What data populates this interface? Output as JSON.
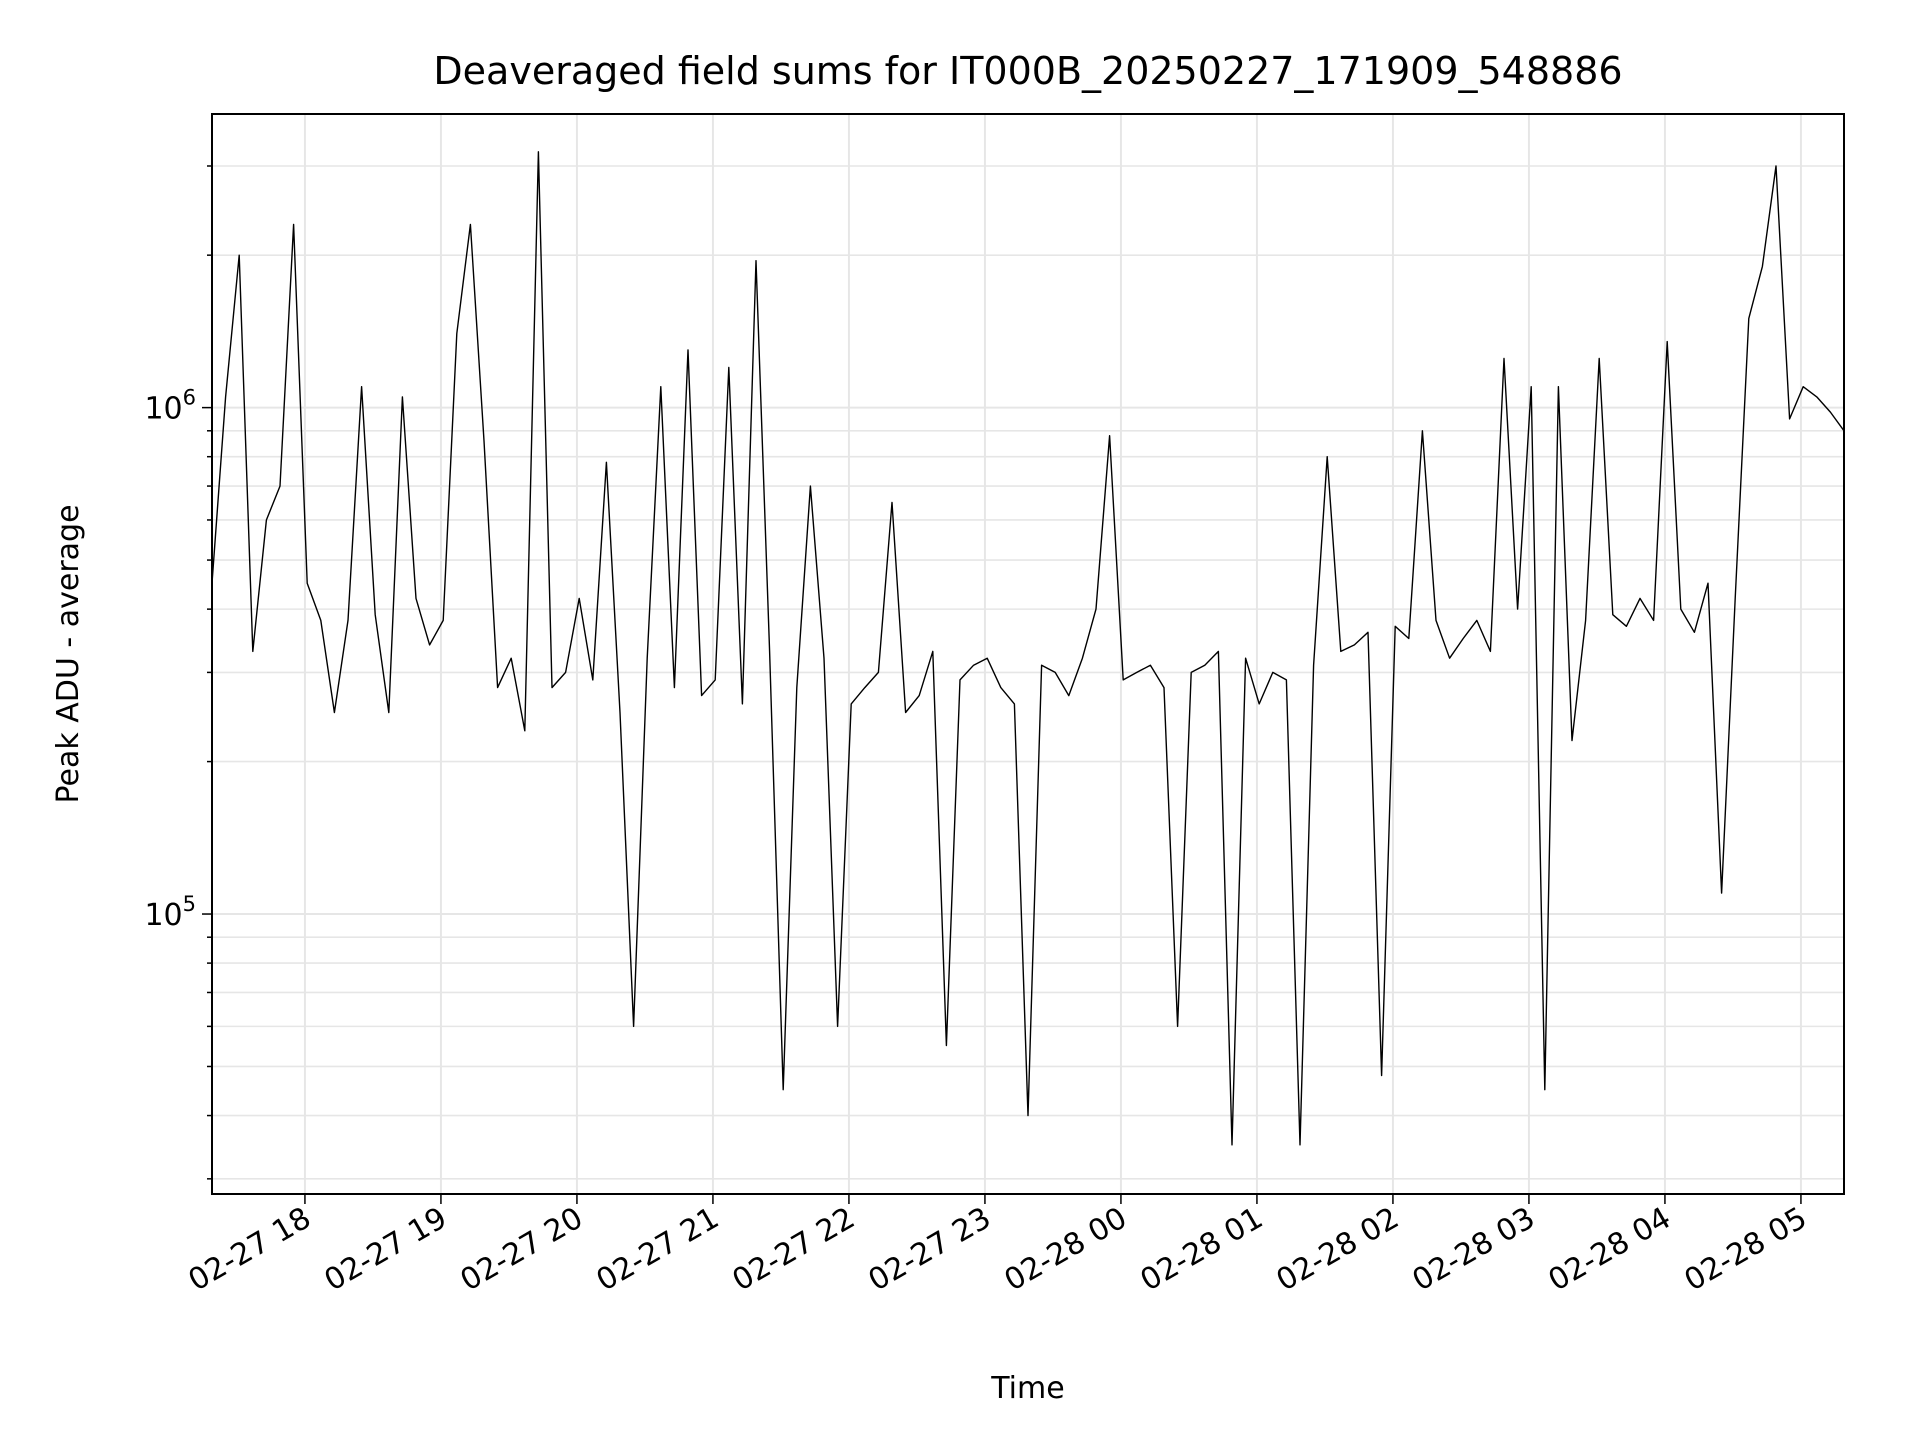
{
  "chart_data": {
    "type": "line",
    "title": "Deaveraged field sums for IT000B_20250227_171909_548886",
    "xlabel": "Time",
    "ylabel": "Peak ADU - average",
    "yscale": "log",
    "ylim": [
      28000,
      3800000
    ],
    "xlim": [
      "2025-02-27 17:19",
      "2025-02-28 05:19"
    ],
    "grid": true,
    "x_ticks": [
      {
        "value": "2025-02-27 18:00",
        "label": "02-27 18"
      },
      {
        "value": "2025-02-27 19:00",
        "label": "02-27 19"
      },
      {
        "value": "2025-02-27 20:00",
        "label": "02-27 20"
      },
      {
        "value": "2025-02-27 21:00",
        "label": "02-27 21"
      },
      {
        "value": "2025-02-27 22:00",
        "label": "02-27 22"
      },
      {
        "value": "2025-02-27 23:00",
        "label": "02-27 23"
      },
      {
        "value": "2025-02-28 00:00",
        "label": "02-28 00"
      },
      {
        "value": "2025-02-28 01:00",
        "label": "02-28 01"
      },
      {
        "value": "2025-02-28 02:00",
        "label": "02-28 02"
      },
      {
        "value": "2025-02-28 03:00",
        "label": "02-28 03"
      },
      {
        "value": "2025-02-28 04:00",
        "label": "02-28 04"
      },
      {
        "value": "2025-02-28 05:00",
        "label": "02-28 05"
      }
    ],
    "y_ticks": [
      {
        "value": 100000,
        "base": "10",
        "exp": "5"
      },
      {
        "value": 1000000,
        "base": "10",
        "exp": "6"
      }
    ],
    "series": [
      {
        "color": "#000000",
        "x": [
          "2025-02-27 17:19",
          "2025-02-27 17:25",
          "2025-02-27 17:31",
          "2025-02-27 17:37",
          "2025-02-27 17:43",
          "2025-02-27 17:49",
          "2025-02-27 17:55",
          "2025-02-27 18:01",
          "2025-02-27 18:07",
          "2025-02-27 18:13",
          "2025-02-27 18:19",
          "2025-02-27 18:25",
          "2025-02-27 18:31",
          "2025-02-27 18:37",
          "2025-02-27 18:43",
          "2025-02-27 18:49",
          "2025-02-27 18:55",
          "2025-02-27 19:01",
          "2025-02-27 19:07",
          "2025-02-27 19:13",
          "2025-02-27 19:19",
          "2025-02-27 19:25",
          "2025-02-27 19:31",
          "2025-02-27 19:37",
          "2025-02-27 19:43",
          "2025-02-27 19:49",
          "2025-02-27 19:55",
          "2025-02-27 20:01",
          "2025-02-27 20:07",
          "2025-02-27 20:13",
          "2025-02-27 20:19",
          "2025-02-27 20:25",
          "2025-02-27 20:31",
          "2025-02-27 20:37",
          "2025-02-27 20:43",
          "2025-02-27 20:49",
          "2025-02-27 20:55",
          "2025-02-27 21:01",
          "2025-02-27 21:07",
          "2025-02-27 21:13",
          "2025-02-27 21:19",
          "2025-02-27 21:25",
          "2025-02-27 21:31",
          "2025-02-27 21:37",
          "2025-02-27 21:43",
          "2025-02-27 21:49",
          "2025-02-27 21:55",
          "2025-02-27 22:01",
          "2025-02-27 22:07",
          "2025-02-27 22:13",
          "2025-02-27 22:19",
          "2025-02-27 22:25",
          "2025-02-27 22:31",
          "2025-02-27 22:37",
          "2025-02-27 22:43",
          "2025-02-27 22:49",
          "2025-02-27 22:55",
          "2025-02-27 23:01",
          "2025-02-27 23:07",
          "2025-02-27 23:13",
          "2025-02-27 23:19",
          "2025-02-27 23:25",
          "2025-02-27 23:31",
          "2025-02-27 23:37",
          "2025-02-27 23:43",
          "2025-02-27 23:49",
          "2025-02-27 23:55",
          "2025-02-28 00:01",
          "2025-02-28 00:07",
          "2025-02-28 00:13",
          "2025-02-28 00:19",
          "2025-02-28 00:25",
          "2025-02-28 00:31",
          "2025-02-28 00:37",
          "2025-02-28 00:43",
          "2025-02-28 00:49",
          "2025-02-28 00:55",
          "2025-02-28 01:01",
          "2025-02-28 01:07",
          "2025-02-28 01:13",
          "2025-02-28 01:19",
          "2025-02-28 01:25",
          "2025-02-28 01:31",
          "2025-02-28 01:37",
          "2025-02-28 01:43",
          "2025-02-28 01:49",
          "2025-02-28 01:55",
          "2025-02-28 02:01",
          "2025-02-28 02:07",
          "2025-02-28 02:13",
          "2025-02-28 02:19",
          "2025-02-28 02:25",
          "2025-02-28 02:31",
          "2025-02-28 02:37",
          "2025-02-28 02:43",
          "2025-02-28 02:49",
          "2025-02-28 02:55",
          "2025-02-28 03:01",
          "2025-02-28 03:07",
          "2025-02-28 03:13",
          "2025-02-28 03:19",
          "2025-02-28 03:25",
          "2025-02-28 03:31",
          "2025-02-28 03:37",
          "2025-02-28 03:43",
          "2025-02-28 03:49",
          "2025-02-28 03:55",
          "2025-02-28 04:01",
          "2025-02-28 04:07",
          "2025-02-28 04:13",
          "2025-02-28 04:19",
          "2025-02-28 04:25",
          "2025-02-28 04:31",
          "2025-02-28 04:37",
          "2025-02-28 04:43",
          "2025-02-28 04:49",
          "2025-02-28 04:55",
          "2025-02-28 05:01",
          "2025-02-28 05:07",
          "2025-02-28 05:13",
          "2025-02-28 05:19"
        ],
        "y": [
          450000,
          1050000,
          2000000,
          330000,
          600000,
          700000,
          2300000,
          450000,
          380000,
          250000,
          380000,
          1100000,
          390000,
          250000,
          1050000,
          420000,
          340000,
          380000,
          1400000,
          2300000,
          860000,
          280000,
          320000,
          230000,
          3200000,
          280000,
          300000,
          420000,
          290000,
          780000,
          250000,
          60000,
          320000,
          1100000,
          280000,
          1300000,
          270000,
          290000,
          1200000,
          260000,
          1950000,
          330000,
          45000,
          280000,
          700000,
          320000,
          60000,
          260000,
          280000,
          300000,
          650000,
          250000,
          270000,
          330000,
          55000,
          290000,
          310000,
          320000,
          280000,
          260000,
          40000,
          310000,
          300000,
          270000,
          320000,
          400000,
          880000,
          290000,
          300000,
          310000,
          280000,
          60000,
          300000,
          310000,
          330000,
          35000,
          320000,
          260000,
          300000,
          290000,
          35000,
          310000,
          800000,
          330000,
          340000,
          360000,
          48000,
          370000,
          350000,
          900000,
          380000,
          320000,
          350000,
          380000,
          330000,
          1250000,
          400000,
          1100000,
          45000,
          1100000,
          220000,
          380000,
          1250000,
          390000,
          370000,
          420000,
          380000,
          1350000,
          400000,
          360000,
          450000,
          110000,
          420000,
          1500000,
          1900000,
          3000000,
          950000,
          1100000,
          1050000,
          980000,
          900000
        ]
      }
    ]
  }
}
